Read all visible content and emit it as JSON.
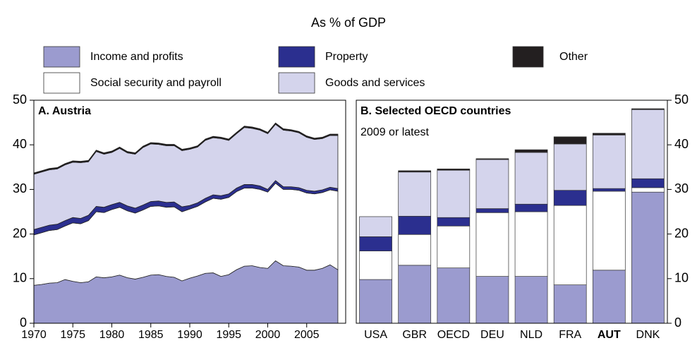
{
  "title": "As % of GDP",
  "chart_data": [
    {
      "type": "area",
      "stacked": true,
      "title": "A. Austria",
      "x": [
        1970,
        1971,
        1972,
        1973,
        1974,
        1975,
        1976,
        1977,
        1978,
        1979,
        1980,
        1981,
        1982,
        1983,
        1984,
        1985,
        1986,
        1987,
        1988,
        1989,
        1990,
        1991,
        1992,
        1993,
        1994,
        1995,
        1996,
        1997,
        1998,
        1999,
        2000,
        2001,
        2002,
        2003,
        2004,
        2005,
        2006,
        2007,
        2008,
        2009
      ],
      "xlim": [
        1970,
        2010
      ],
      "xticks": [
        1970,
        1975,
        1980,
        1985,
        1990,
        1995,
        2000,
        2005
      ],
      "ylim": [
        0,
        50
      ],
      "yticks": [
        0,
        10,
        20,
        30,
        40,
        50
      ],
      "y_axis_side": "left",
      "series": [
        {
          "name": "Income and profits",
          "color": "#9b9bcf",
          "values": [
            8.5,
            8.7,
            9.0,
            9.1,
            9.8,
            9.4,
            9.1,
            9.3,
            10.4,
            10.2,
            10.4,
            10.8,
            10.2,
            9.9,
            10.3,
            10.8,
            10.9,
            10.5,
            10.3,
            9.5,
            10.1,
            10.6,
            11.2,
            11.3,
            10.5,
            10.9,
            12.0,
            12.8,
            12.9,
            12.5,
            12.3,
            14.0,
            12.9,
            12.8,
            12.6,
            11.9,
            11.9,
            12.3,
            13.1,
            12.0
          ]
        },
        {
          "name": "Social security and payroll",
          "color": "#ffffff",
          "values": [
            11.3,
            11.6,
            11.8,
            11.9,
            12.0,
            13.1,
            13.2,
            13.7,
            14.6,
            14.6,
            15.1,
            15.2,
            15.0,
            14.8,
            15.1,
            15.4,
            15.4,
            15.5,
            15.8,
            15.5,
            15.5,
            15.6,
            16.0,
            16.7,
            17.3,
            17.3,
            17.5,
            17.5,
            17.4,
            17.5,
            17.1,
            17.4,
            17.1,
            17.2,
            17.2,
            17.3,
            17.1,
            17.0,
            16.8,
            17.6
          ]
        },
        {
          "name": "Property",
          "color": "#2b2f8f",
          "values": [
            1.2,
            1.2,
            1.2,
            1.2,
            1.2,
            1.2,
            1.2,
            1.2,
            1.2,
            1.2,
            1.1,
            1.1,
            1.1,
            1.1,
            1.1,
            1.1,
            1.1,
            1.1,
            1.1,
            1.1,
            0.8,
            0.8,
            0.8,
            0.8,
            0.8,
            0.8,
            0.8,
            0.8,
            0.8,
            0.8,
            0.6,
            0.6,
            0.6,
            0.6,
            0.6,
            0.6,
            0.6,
            0.6,
            0.6,
            0.6
          ]
        },
        {
          "name": "Goods and services",
          "color": "#d4d4ec",
          "values": [
            12.4,
            12.4,
            12.4,
            12.4,
            12.5,
            12.4,
            12.5,
            12.0,
            12.3,
            11.9,
            11.7,
            12.1,
            11.9,
            12.1,
            12.9,
            12.9,
            12.7,
            12.7,
            12.6,
            12.6,
            12.6,
            12.5,
            13.0,
            12.8,
            12.8,
            12.0,
            12.2,
            12.8,
            12.6,
            12.5,
            12.5,
            12.6,
            12.7,
            12.5,
            12.3,
            11.9,
            11.6,
            11.5,
            11.6,
            11.9
          ]
        },
        {
          "name": "Other",
          "color": "#231f20",
          "values": [
            0.3,
            0.3,
            0.3,
            0.3,
            0.3,
            0.3,
            0.3,
            0.3,
            0.3,
            0.3,
            0.3,
            0.3,
            0.3,
            0.3,
            0.3,
            0.3,
            0.3,
            0.3,
            0.3,
            0.3,
            0.3,
            0.3,
            0.3,
            0.3,
            0.3,
            0.3,
            0.3,
            0.3,
            0.3,
            0.3,
            0.3,
            0.3,
            0.3,
            0.3,
            0.3,
            0.3,
            0.3,
            0.3,
            0.3,
            0.3
          ]
        }
      ]
    },
    {
      "type": "bar",
      "stacked": true,
      "title": "B. Selected OECD countries",
      "subtitle": "2009 or latest",
      "categories": [
        "USA",
        "GBR",
        "OECD",
        "DEU",
        "NLD",
        "FRA",
        "AUT",
        "DNK"
      ],
      "highlight_index": 6,
      "ylim": [
        0,
        50
      ],
      "yticks": [
        0,
        10,
        20,
        30,
        40,
        50
      ],
      "y_axis_side": "right",
      "series": [
        {
          "name": "Income and profits",
          "color": "#9b9bcf",
          "values": [
            9.8,
            13.0,
            12.4,
            10.5,
            10.5,
            8.6,
            11.9,
            29.4
          ]
        },
        {
          "name": "Social security and payroll",
          "color": "#ffffff",
          "values": [
            6.4,
            6.9,
            9.4,
            14.3,
            14.5,
            17.8,
            17.7,
            1.0
          ]
        },
        {
          "name": "Property",
          "color": "#2b2f8f",
          "values": [
            3.2,
            4.1,
            1.9,
            0.9,
            1.7,
            3.4,
            0.6,
            2.0
          ]
        },
        {
          "name": "Goods and services",
          "color": "#d4d4ec",
          "values": [
            4.5,
            9.9,
            10.6,
            11.0,
            11.6,
            10.4,
            12.0,
            15.5
          ]
        },
        {
          "name": "Other",
          "color": "#231f20",
          "values": [
            0,
            0.3,
            0.3,
            0.2,
            0.6,
            1.6,
            0.4,
            0.2
          ]
        }
      ]
    }
  ]
}
